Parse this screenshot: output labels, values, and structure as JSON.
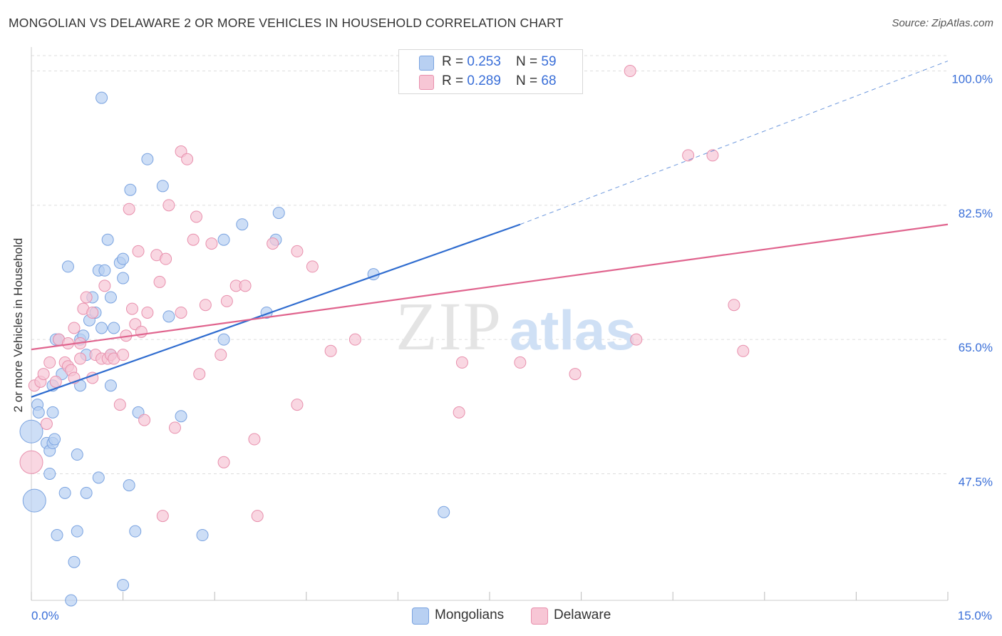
{
  "title": "MONGOLIAN VS DELAWARE 2 OR MORE VEHICLES IN HOUSEHOLD CORRELATION CHART",
  "source": "Source: ZipAtlas.com",
  "watermark": {
    "zip": "ZIP",
    "atlas": "atlas"
  },
  "legend": {
    "mongolians": {
      "r_label": "R = ",
      "r_value": "0.253",
      "n_label": "N = ",
      "n_value": "59"
    },
    "delaware": {
      "r_label": "R = ",
      "r_value": "0.289",
      "n_label": "N = ",
      "n_value": "68"
    }
  },
  "bottom_legend": {
    "mongolians": "Mongolians",
    "delaware": "Delaware"
  },
  "colors": {
    "blue_fill": "#b8d0f2",
    "blue_stroke": "#7aa3e0",
    "blue_line": "#2f6ccf",
    "pink_fill": "#f7c6d5",
    "pink_stroke": "#e890ad",
    "pink_line": "#e0648e",
    "axis_text": "#3a6fd8",
    "grid": "#dddddd"
  },
  "chart_data": {
    "type": "scatter",
    "title": "MONGOLIAN VS DELAWARE 2 OR MORE VEHICLES IN HOUSEHOLD CORRELATION CHART",
    "xlabel": "",
    "ylabel": "2 or more Vehicles in Household",
    "xlim": [
      0,
      15
    ],
    "ylim": [
      31,
      102
    ],
    "x_ticks": [
      0,
      1.5,
      3,
      4.5,
      6,
      7.5,
      9,
      10.5,
      12,
      13.5,
      15
    ],
    "x_tick_labels": [
      {
        "value": 0,
        "label": "0.0%"
      },
      {
        "value": 15,
        "label": "15.0%"
      }
    ],
    "y_ticks": [
      {
        "value": 47.5,
        "label": "47.5%"
      },
      {
        "value": 65.0,
        "label": "65.0%"
      },
      {
        "value": 82.5,
        "label": "82.5%"
      },
      {
        "value": 100.0,
        "label": "100.0%"
      }
    ],
    "series": [
      {
        "name": "Mongolians",
        "R": 0.253,
        "N": 59,
        "trend": {
          "x0": 0,
          "y0": 57.5,
          "x1": 8.0,
          "y1": 80.0,
          "dash_to_x": 15,
          "dash_to_y": 101.3
        },
        "points": [
          [
            0.0,
            53.0,
            2
          ],
          [
            0.05,
            44.0,
            2
          ],
          [
            0.1,
            56.5,
            1
          ],
          [
            0.12,
            55.5,
            1
          ],
          [
            0.25,
            51.5,
            1
          ],
          [
            0.3,
            50.5,
            1
          ],
          [
            0.3,
            47.5,
            1
          ],
          [
            0.35,
            59.0,
            1
          ],
          [
            0.35,
            55.5,
            1
          ],
          [
            0.35,
            51.5,
            1
          ],
          [
            0.38,
            52.0,
            1
          ],
          [
            0.4,
            65.0,
            1
          ],
          [
            0.42,
            39.5,
            1
          ],
          [
            0.45,
            65.0,
            1
          ],
          [
            0.5,
            60.5,
            1
          ],
          [
            0.55,
            45.0,
            1
          ],
          [
            0.6,
            74.5,
            1
          ],
          [
            0.65,
            31.0,
            1
          ],
          [
            0.7,
            36.0,
            1
          ],
          [
            0.75,
            50.0,
            1
          ],
          [
            0.75,
            40.0,
            1
          ],
          [
            0.8,
            59.0,
            1
          ],
          [
            0.8,
            65.0,
            1
          ],
          [
            0.85,
            65.5,
            1
          ],
          [
            0.9,
            63.0,
            1
          ],
          [
            0.9,
            45.0,
            1
          ],
          [
            0.95,
            67.5,
            1
          ],
          [
            1.0,
            70.5,
            1
          ],
          [
            1.05,
            68.5,
            1
          ],
          [
            1.1,
            47.0,
            1
          ],
          [
            1.1,
            74.0,
            1
          ],
          [
            1.15,
            96.5,
            1
          ],
          [
            1.15,
            66.5,
            1
          ],
          [
            1.2,
            74.0,
            1
          ],
          [
            1.25,
            78.0,
            1
          ],
          [
            1.3,
            59.0,
            1
          ],
          [
            1.3,
            70.5,
            1
          ],
          [
            1.3,
            63.0,
            1
          ],
          [
            1.35,
            66.5,
            1
          ],
          [
            1.45,
            75.0,
            1
          ],
          [
            1.5,
            75.5,
            1
          ],
          [
            1.5,
            73.0,
            1
          ],
          [
            1.5,
            33.0,
            1
          ],
          [
            1.6,
            46.0,
            1
          ],
          [
            1.62,
            84.5,
            1
          ],
          [
            1.7,
            40.0,
            1
          ],
          [
            1.75,
            55.5,
            1
          ],
          [
            1.9,
            88.5,
            1
          ],
          [
            2.15,
            85.0,
            1
          ],
          [
            2.25,
            68.0,
            1
          ],
          [
            2.45,
            55.0,
            1
          ],
          [
            2.8,
            39.5,
            1
          ],
          [
            3.15,
            65.0,
            1
          ],
          [
            3.15,
            78.0,
            1
          ],
          [
            3.45,
            80.0,
            1
          ],
          [
            3.85,
            68.5,
            1
          ],
          [
            4.0,
            78.0,
            1
          ],
          [
            4.05,
            81.5,
            1
          ],
          [
            5.6,
            73.5,
            1
          ],
          [
            6.75,
            42.5,
            1
          ]
        ]
      },
      {
        "name": "Delaware",
        "R": 0.289,
        "N": 68,
        "trend": {
          "x0": 0,
          "y0": 63.7,
          "x1": 15,
          "y1": 80.0
        },
        "points": [
          [
            0.0,
            49.0,
            2
          ],
          [
            0.05,
            59.0,
            1
          ],
          [
            0.15,
            59.5,
            1
          ],
          [
            0.2,
            60.5,
            1
          ],
          [
            0.25,
            54.0,
            1
          ],
          [
            0.3,
            62.0,
            1
          ],
          [
            0.4,
            59.5,
            1
          ],
          [
            0.45,
            65.0,
            1
          ],
          [
            0.55,
            62.0,
            1
          ],
          [
            0.6,
            61.5,
            1
          ],
          [
            0.6,
            64.5,
            1
          ],
          [
            0.65,
            61.0,
            1
          ],
          [
            0.7,
            66.5,
            1
          ],
          [
            0.7,
            60.0,
            1
          ],
          [
            0.8,
            64.5,
            1
          ],
          [
            0.8,
            62.5,
            1
          ],
          [
            0.85,
            69.0,
            1
          ],
          [
            0.9,
            70.5,
            1
          ],
          [
            1.0,
            60.0,
            1
          ],
          [
            1.0,
            68.5,
            1
          ],
          [
            1.05,
            63.0,
            1
          ],
          [
            1.15,
            62.5,
            1
          ],
          [
            1.2,
            72.0,
            1
          ],
          [
            1.25,
            62.5,
            1
          ],
          [
            1.3,
            63.0,
            1
          ],
          [
            1.35,
            62.5,
            1
          ],
          [
            1.45,
            56.5,
            1
          ],
          [
            1.5,
            63.0,
            1
          ],
          [
            1.55,
            65.5,
            1
          ],
          [
            1.6,
            82.0,
            1
          ],
          [
            1.65,
            69.0,
            1
          ],
          [
            1.7,
            67.0,
            1
          ],
          [
            1.75,
            76.5,
            1
          ],
          [
            1.8,
            66.0,
            1
          ],
          [
            1.85,
            54.5,
            1
          ],
          [
            1.9,
            68.5,
            1
          ],
          [
            2.05,
            76.0,
            1
          ],
          [
            2.1,
            72.5,
            1
          ],
          [
            2.15,
            42.0,
            1
          ],
          [
            2.2,
            75.5,
            1
          ],
          [
            2.25,
            82.5,
            1
          ],
          [
            2.35,
            53.5,
            1
          ],
          [
            2.45,
            68.5,
            1
          ],
          [
            2.45,
            89.5,
            1
          ],
          [
            2.55,
            88.5,
            1
          ],
          [
            2.65,
            78.0,
            1
          ],
          [
            2.7,
            81.0,
            1
          ],
          [
            2.75,
            60.5,
            1
          ],
          [
            2.85,
            69.5,
            1
          ],
          [
            2.95,
            77.5,
            1
          ],
          [
            3.1,
            63.0,
            1
          ],
          [
            3.15,
            49.0,
            1
          ],
          [
            3.2,
            70.0,
            1
          ],
          [
            3.35,
            72.0,
            1
          ],
          [
            3.5,
            72.0,
            1
          ],
          [
            3.65,
            52.0,
            1
          ],
          [
            3.7,
            42.0,
            1
          ],
          [
            3.95,
            77.5,
            1
          ],
          [
            4.35,
            56.5,
            1
          ],
          [
            4.35,
            76.5,
            1
          ],
          [
            4.6,
            74.5,
            1
          ],
          [
            4.9,
            63.5,
            1
          ],
          [
            5.3,
            65.0,
            1
          ],
          [
            7.05,
            62.0,
            1
          ],
          [
            7.0,
            55.5,
            1
          ],
          [
            8.0,
            62.0,
            1
          ],
          [
            8.9,
            60.5,
            1
          ],
          [
            9.8,
            100.0,
            1
          ],
          [
            9.9,
            65.0,
            1
          ],
          [
            10.75,
            89.0,
            1
          ],
          [
            11.15,
            89.0,
            1
          ],
          [
            11.5,
            69.5,
            1
          ],
          [
            11.65,
            63.5,
            1
          ]
        ]
      }
    ]
  }
}
